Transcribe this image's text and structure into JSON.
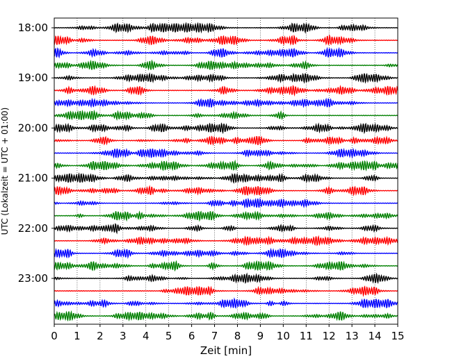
{
  "chart_data": {
    "type": "line",
    "title": "",
    "xlabel": "Zeit  [min]",
    "ylabel": "UTC (Lokalzeit = UTC + 01:00)",
    "xlim": [
      0,
      15
    ],
    "x_ticks": [
      0,
      1,
      2,
      3,
      4,
      5,
      6,
      7,
      8,
      9,
      10,
      11,
      12,
      13,
      14,
      15
    ],
    "x_grid": true,
    "y_ticks": [
      "18:00",
      "19:00",
      "20:00",
      "21:00",
      "22:00",
      "23:00"
    ],
    "trace_interval_min": 15,
    "trace_colors": [
      "#000000",
      "#ff0000",
      "#0000ff",
      "#008000"
    ],
    "traces": [
      {
        "start": "18:00",
        "color": "#000000"
      },
      {
        "start": "18:15",
        "color": "#ff0000"
      },
      {
        "start": "18:30",
        "color": "#0000ff"
      },
      {
        "start": "18:45",
        "color": "#008000"
      },
      {
        "start": "19:00",
        "color": "#000000"
      },
      {
        "start": "19:15",
        "color": "#ff0000"
      },
      {
        "start": "19:30",
        "color": "#0000ff"
      },
      {
        "start": "19:45",
        "color": "#008000"
      },
      {
        "start": "20:00",
        "color": "#000000"
      },
      {
        "start": "20:15",
        "color": "#ff0000"
      },
      {
        "start": "20:30",
        "color": "#0000ff"
      },
      {
        "start": "20:45",
        "color": "#008000"
      },
      {
        "start": "21:00",
        "color": "#000000"
      },
      {
        "start": "21:15",
        "color": "#ff0000"
      },
      {
        "start": "21:30",
        "color": "#0000ff"
      },
      {
        "start": "21:45",
        "color": "#008000"
      },
      {
        "start": "22:00",
        "color": "#000000"
      },
      {
        "start": "22:15",
        "color": "#ff0000"
      },
      {
        "start": "22:30",
        "color": "#0000ff"
      },
      {
        "start": "22:45",
        "color": "#008000"
      },
      {
        "start": "23:00",
        "color": "#000000"
      },
      {
        "start": "23:15",
        "color": "#ff0000"
      },
      {
        "start": "23:30",
        "color": "#0000ff"
      },
      {
        "start": "23:45",
        "color": "#008000"
      }
    ]
  }
}
